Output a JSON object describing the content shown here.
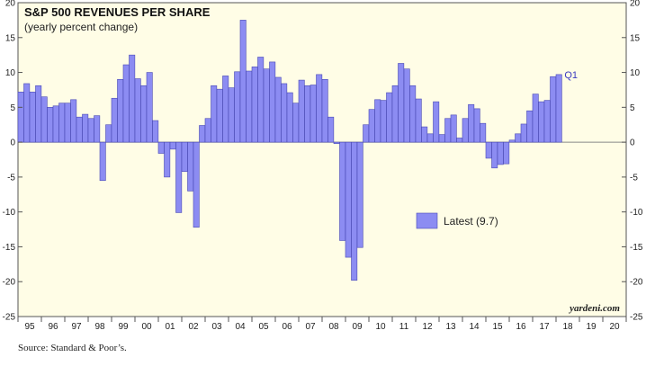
{
  "chart_data": {
    "type": "bar",
    "title": "S&P 500 REVENUES PER SHARE",
    "subtitle": "(yearly percent change)",
    "ylim": [
      -25,
      20
    ],
    "yticks": [
      20,
      15,
      10,
      5,
      0,
      -5,
      -10,
      -15,
      -20,
      -25
    ],
    "year_labels": [
      "95",
      "96",
      "97",
      "98",
      "99",
      "00",
      "01",
      "02",
      "03",
      "04",
      "05",
      "06",
      "07",
      "08",
      "09",
      "10",
      "11",
      "12",
      "13",
      "14",
      "15",
      "16",
      "17",
      "18",
      "19",
      "20"
    ],
    "xlim_years": [
      1995,
      2021
    ],
    "x_quarters": [
      "1995Q1",
      "1995Q2",
      "1995Q3",
      "1995Q4",
      "1996Q1",
      "1996Q2",
      "1996Q3",
      "1996Q4",
      "1997Q1",
      "1997Q2",
      "1997Q3",
      "1997Q4",
      "1998Q1",
      "1998Q2",
      "1998Q3",
      "1998Q4",
      "1999Q1",
      "1999Q2",
      "1999Q3",
      "1999Q4",
      "2000Q1",
      "2000Q2",
      "2000Q3",
      "2000Q4",
      "2001Q1",
      "2001Q2",
      "2001Q3",
      "2001Q4",
      "2002Q1",
      "2002Q2",
      "2002Q3",
      "2002Q4",
      "2003Q1",
      "2003Q2",
      "2003Q3",
      "2003Q4",
      "2004Q1",
      "2004Q2",
      "2004Q3",
      "2004Q4",
      "2005Q1",
      "2005Q2",
      "2005Q3",
      "2005Q4",
      "2006Q1",
      "2006Q2",
      "2006Q3",
      "2006Q4",
      "2007Q1",
      "2007Q2",
      "2007Q3",
      "2007Q4",
      "2008Q1",
      "2008Q2",
      "2008Q3",
      "2008Q4",
      "2009Q1",
      "2009Q2",
      "2009Q3",
      "2009Q4",
      "2010Q1",
      "2010Q2",
      "2010Q3",
      "2010Q4",
      "2011Q1",
      "2011Q2",
      "2011Q3",
      "2011Q4",
      "2012Q1",
      "2012Q2",
      "2012Q3",
      "2012Q4",
      "2013Q1",
      "2013Q2",
      "2013Q3",
      "2013Q4",
      "2014Q1",
      "2014Q2",
      "2014Q3",
      "2014Q4",
      "2015Q1",
      "2015Q2",
      "2015Q3",
      "2015Q4",
      "2016Q1",
      "2016Q2",
      "2016Q3",
      "2016Q4",
      "2017Q1",
      "2017Q2",
      "2017Q3",
      "2017Q4",
      "2018Q1"
    ],
    "series": [
      {
        "values": [
          7.2,
          8.4,
          7.2,
          8.1,
          6.5,
          5.0,
          5.2,
          5.6,
          5.6,
          6.1,
          3.6,
          4.0,
          3.4,
          3.8,
          -5.5,
          2.5,
          6.3,
          9.0,
          11.1,
          12.5,
          9.1,
          8.1,
          10.0,
          3.1,
          -1.6,
          -5.0,
          -1.0,
          -10.1,
          -4.2,
          -7.0,
          -12.2,
          2.4,
          3.4,
          8.1,
          7.6,
          9.5,
          7.8,
          10.1,
          17.5,
          10.2,
          10.8,
          12.2,
          10.5,
          11.5,
          9.3,
          8.4,
          7.1,
          5.6,
          8.9,
          8.1,
          8.2,
          9.7,
          9.0,
          3.6,
          -0.2,
          -14.1,
          -16.5,
          -19.8,
          -15.1,
          2.5,
          4.7,
          6.1,
          6.0,
          7.1,
          8.1,
          11.3,
          10.5,
          8.1,
          6.2,
          2.2,
          1.2,
          5.8,
          1.1,
          3.4,
          3.9,
          0.6,
          3.4,
          5.4,
          4.8,
          2.7,
          -2.3,
          -3.7,
          -3.2,
          -3.1,
          0.3,
          1.2,
          2.6,
          4.5,
          6.9,
          5.8,
          6.0,
          9.4,
          9.7
        ]
      }
    ],
    "annotations": [
      "Q1"
    ],
    "legend": {
      "label": "Latest (9.7)",
      "position": "center-right"
    },
    "credit": "yardeni.com",
    "source": "Source: Standard & Poor’s.",
    "grid": false
  }
}
